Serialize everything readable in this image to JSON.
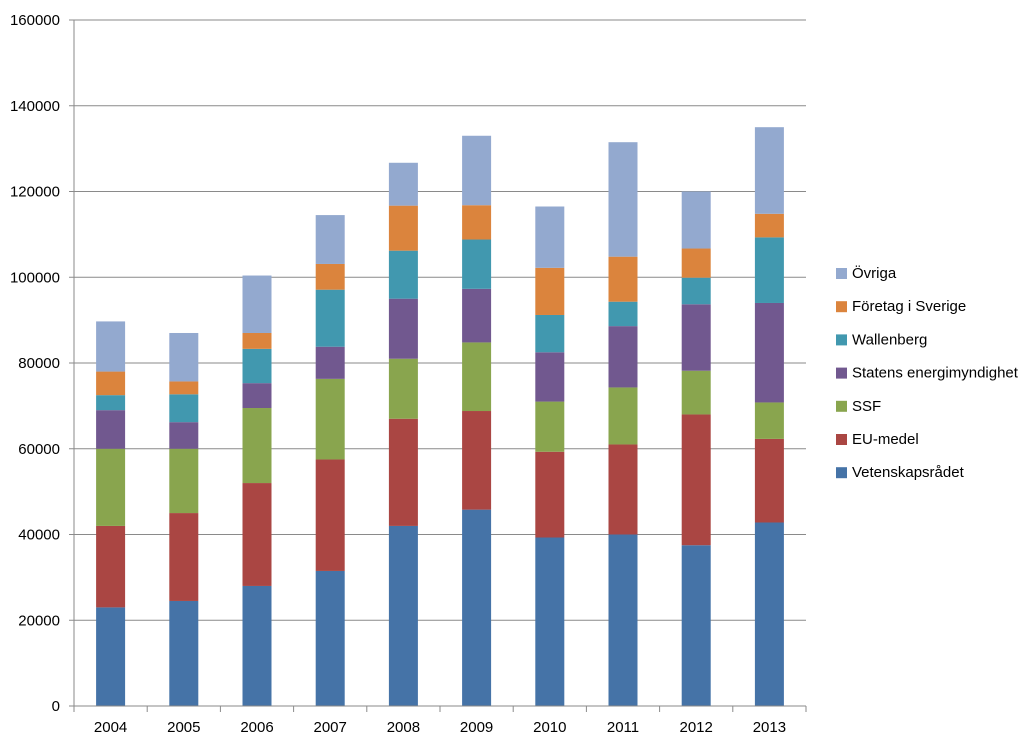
{
  "chart_data": {
    "type": "bar",
    "stacked": true,
    "title": "",
    "xlabel": "",
    "ylabel": "",
    "ylim": [
      0,
      160000
    ],
    "yticks": [
      0,
      20000,
      40000,
      60000,
      80000,
      100000,
      120000,
      140000,
      160000
    ],
    "ytick_labels": [
      "0",
      "20000",
      "40000",
      "60000",
      "80000",
      "100000",
      "120000",
      "140000",
      "160000"
    ],
    "grid": true,
    "legend_position": "right",
    "categories": [
      "2004",
      "2005",
      "2006",
      "2007",
      "2008",
      "2009",
      "2010",
      "2011",
      "2012",
      "2013"
    ],
    "series": [
      {
        "name": "Vetenskapsrådet",
        "color": "#4573a7",
        "values": [
          23000,
          24500,
          28000,
          31500,
          42000,
          45800,
          39300,
          40000,
          37500,
          42800
        ]
      },
      {
        "name": "EU-medel",
        "color": "#aa4643",
        "values": [
          19000,
          20500,
          24000,
          26000,
          25000,
          23000,
          20000,
          21000,
          30500,
          19500
        ]
      },
      {
        "name": "SSF",
        "color": "#89a54e",
        "values": [
          18000,
          15000,
          17500,
          18800,
          14000,
          16000,
          11700,
          13300,
          10200,
          8500
        ]
      },
      {
        "name": "Statens energimyndighet",
        "color": "#71588f",
        "values": [
          9000,
          6200,
          5800,
          7500,
          14000,
          12500,
          11500,
          14300,
          15500,
          23200
        ]
      },
      {
        "name": "Wallenberg",
        "color": "#4198af",
        "values": [
          3500,
          6500,
          8000,
          13300,
          11200,
          11500,
          8700,
          5700,
          6200,
          15300
        ]
      },
      {
        "name": "Företag i Sverige",
        "color": "#db843d",
        "values": [
          5500,
          3000,
          3700,
          6000,
          10500,
          8000,
          11000,
          10500,
          6800,
          5500
        ]
      },
      {
        "name": "Övriga",
        "color": "#93a9cf",
        "values": [
          11700,
          11300,
          13400,
          11400,
          10000,
          16200,
          14300,
          26700,
          13300,
          20200
        ]
      }
    ]
  }
}
